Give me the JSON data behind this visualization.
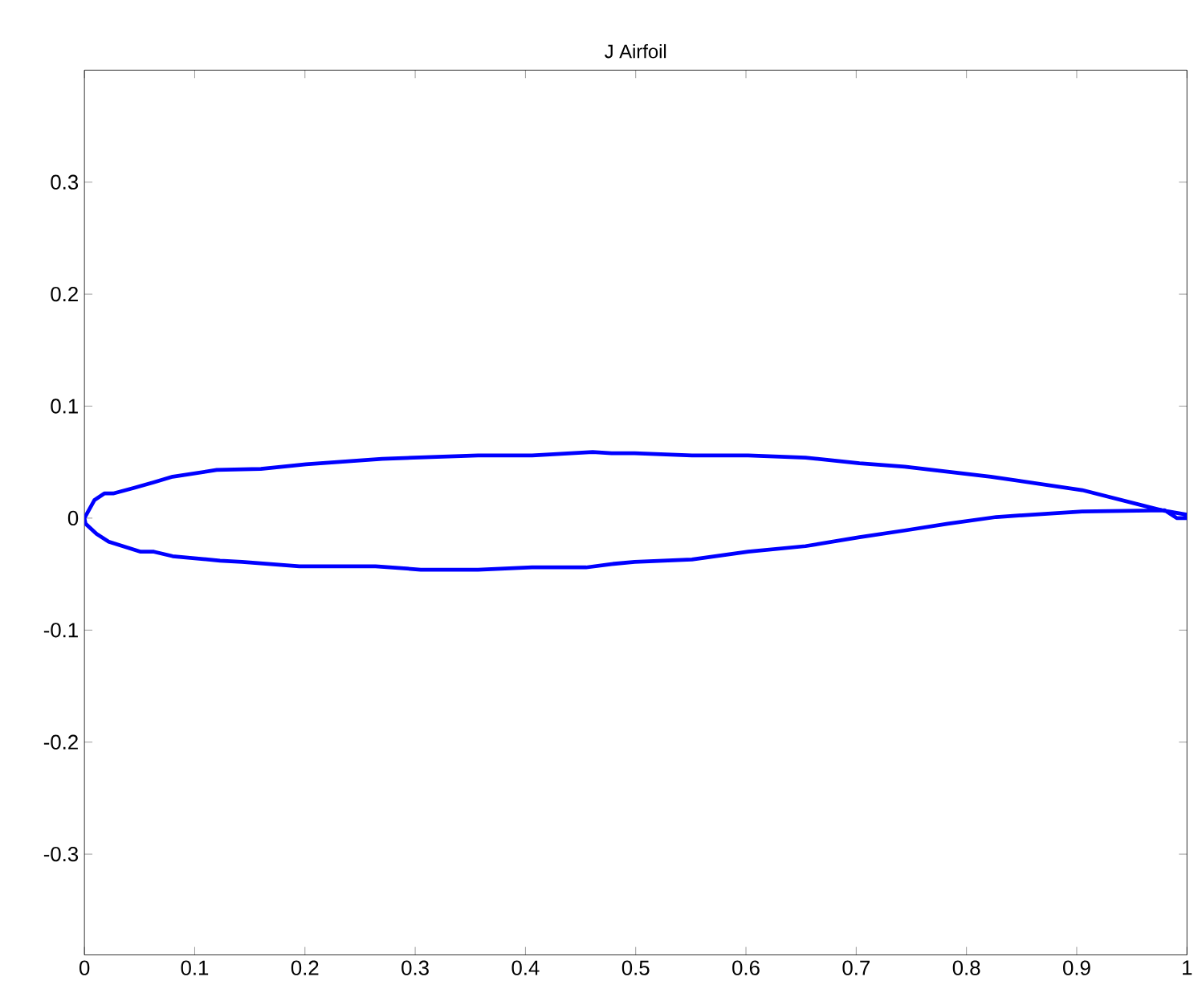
{
  "chart_data": {
    "type": "line",
    "title": "J Airfoil",
    "x": [
      1.0,
      0.977,
      0.905,
      0.822,
      0.744,
      0.703,
      0.654,
      0.602,
      0.551,
      0.499,
      0.478,
      0.461,
      0.406,
      0.357,
      0.27,
      0.201,
      0.16,
      0.12,
      0.08,
      0.063,
      0.045,
      0.026,
      0.018,
      0.009,
      0,
      0.001,
      0.011,
      0.022,
      0.051,
      0.063,
      0.08,
      0.123,
      0.143,
      0.195,
      0.264,
      0.305,
      0.357,
      0.406,
      0.455,
      0.478,
      0.499,
      0.551,
      0.602,
      0.654,
      0.703,
      0.744,
      0.783,
      0.827,
      0.905,
      0.98,
      0.991,
      1.0
    ],
    "series": [
      {
        "color": "#0000ff",
        "values": [
          0.003,
          0.007,
          0.025,
          0.037,
          0.046,
          0.049,
          0.054,
          0.056,
          0.056,
          0.058,
          0.058,
          0.059,
          0.056,
          0.056,
          0.053,
          0.048,
          0.044,
          0.043,
          0.037,
          0.032,
          0.027,
          0.022,
          0.022,
          0.016,
          0,
          -0.005,
          -0.014,
          -0.021,
          -0.03,
          -0.03,
          -0.034,
          -0.038,
          -0.039,
          -0.043,
          -0.043,
          -0.046,
          -0.046,
          -0.044,
          -0.044,
          -0.041,
          -0.039,
          -0.037,
          -0.03,
          -0.025,
          -0.017,
          -0.011,
          -0.005,
          0.001,
          0.006,
          0.007,
          0.0,
          0.0
        ]
      }
    ],
    "xlim": [
      0,
      1
    ],
    "ylim": [
      -0.39,
      0.4
    ],
    "xticks": [
      0,
      0.1,
      0.2,
      0.3,
      0.4,
      0.5,
      0.6,
      0.7,
      0.8,
      0.9,
      1
    ],
    "yticks": [
      -0.3,
      -0.2,
      -0.1,
      0,
      0.1,
      0.2,
      0.3
    ],
    "grid": false,
    "marker": "none",
    "line_style": "solid"
  }
}
